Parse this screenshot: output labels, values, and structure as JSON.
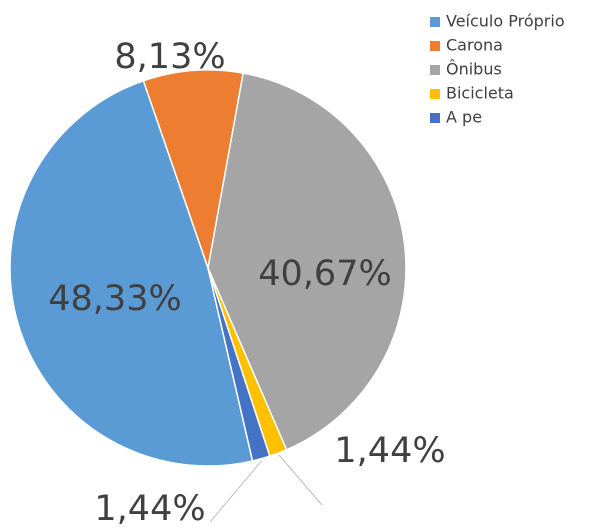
{
  "chart_data": {
    "type": "pie",
    "categories": [
      "Veículo Próprio",
      "Carona",
      "Ônibus",
      "Bicicleta",
      "A pe"
    ],
    "values": [
      48.33,
      8.13,
      40.67,
      1.44,
      1.44
    ],
    "value_labels": [
      "48,33%",
      "8,13%",
      "40,67%",
      "1,44%",
      "1,44%"
    ],
    "colors": [
      "#5b9bd5",
      "#ed7d31",
      "#a5a5a5",
      "#ffc000",
      "#4472c4"
    ],
    "legend": "top-right"
  }
}
